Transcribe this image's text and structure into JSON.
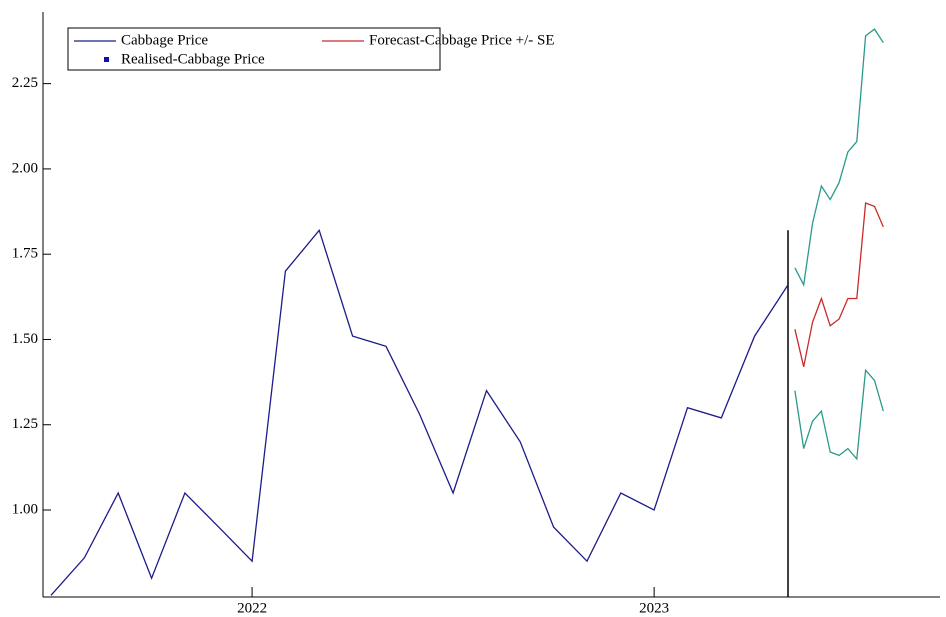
{
  "chart_data": {
    "type": "line",
    "xlim": [
      2021.48,
      2023.711
    ],
    "ylim": [
      0.745,
      2.46
    ],
    "xticks": [
      2022,
      2023
    ],
    "yticks": [
      {
        "value": 1,
        "label": "1.00"
      },
      {
        "value": 1.25,
        "label": "1.25"
      },
      {
        "value": 1.5,
        "label": "1.50"
      },
      {
        "value": 1.75,
        "label": "1.75"
      },
      {
        "value": 2,
        "label": "2.00"
      },
      {
        "value": 2.25,
        "label": "2.25"
      }
    ],
    "divider": {
      "x": 2023.333,
      "ytop": 1.82
    },
    "legend": "top-left",
    "series": [
      {
        "name": "Cabbage Price",
        "color": "#1c1c8a",
        "x": [
          2021.5,
          2021.583,
          2021.667,
          2021.75,
          2021.833,
          2021.917,
          2022.0,
          2022.083,
          2022.167,
          2022.25,
          2022.333,
          2022.417,
          2022.5,
          2022.583,
          2022.667,
          2022.75,
          2022.833,
          2022.917,
          2023.0,
          2023.083,
          2023.167,
          2023.25,
          2023.333
        ],
        "values": [
          0.75,
          0.86,
          1.05,
          0.8,
          1.05,
          0.95,
          0.85,
          1.7,
          1.82,
          1.51,
          1.48,
          1.28,
          1.05,
          1.35,
          1.2,
          0.95,
          0.85,
          1.05,
          1.0,
          1.3,
          1.27,
          1.51,
          1.66
        ]
      },
      {
        "name": "Forecast-Cabbage Price +/- SE",
        "color": "#cc2a2a",
        "band_color": "#2a9a8c",
        "x": [
          2023.35,
          2023.372,
          2023.394,
          2023.416,
          2023.438,
          2023.46,
          2023.482,
          2023.504,
          2023.526,
          2023.548,
          2023.57
        ],
        "values": [
          1.53,
          1.42,
          1.55,
          1.62,
          1.54,
          1.56,
          1.62,
          1.62,
          1.9,
          1.89,
          1.83
        ],
        "upper": [
          1.71,
          1.66,
          1.84,
          1.95,
          1.91,
          1.96,
          2.05,
          2.08,
          2.39,
          2.41,
          2.37
        ],
        "lower": [
          1.35,
          1.18,
          1.26,
          1.29,
          1.17,
          1.16,
          1.18,
          1.15,
          1.41,
          1.38,
          1.29
        ]
      },
      {
        "name": "Realised-Cabbage Price",
        "color": "#1010b0",
        "marker": "square",
        "x": [],
        "values": []
      }
    ]
  }
}
